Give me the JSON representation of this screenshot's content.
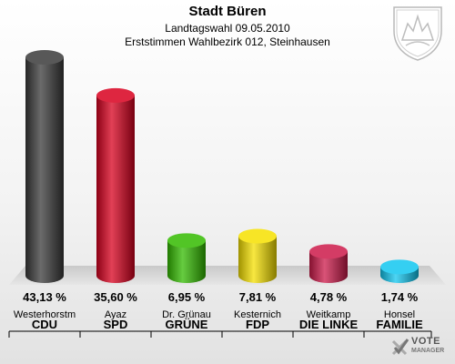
{
  "header": {
    "title": "Stadt Büren",
    "subtitle1": "Landtagswahl 09.05.2010",
    "subtitle2": "Erststimmen Wahlbezirk 012, Steinhausen"
  },
  "logo": {
    "line1": "VOTE",
    "line2": "MANAGER",
    "icon": "checkmark-cross-icon"
  },
  "crest": {
    "icon": "coat-of-arms-icon"
  },
  "colors": {
    "CDU": "#3a3a3a",
    "SPD": "#d8001e",
    "GRÜNE": "#33bb00",
    "FDP": "#f5e000",
    "DIE LINKE": "#cc1a4a",
    "FAMILIE": "#11c7f0"
  },
  "chart_data": {
    "type": "bar",
    "unit": "%",
    "categories": [
      "CDU",
      "SPD",
      "GRÜNE",
      "FDP",
      "DIE LINKE",
      "FAMILIE"
    ],
    "candidates": [
      "Westerhorstm",
      "Ayaz",
      "Dr. Grünau",
      "Kesternich",
      "Weitkamp",
      "Honsel"
    ],
    "values": [
      43.13,
      35.6,
      6.95,
      7.81,
      4.78,
      1.74
    ],
    "value_labels": [
      "43,13 %",
      "35,60 %",
      "6,95 %",
      "7,81 %",
      "4,78 %",
      "1,74 %"
    ],
    "colors": [
      "#3a3a3a",
      "#d8001e",
      "#33bb00",
      "#f5e000",
      "#cc1a4a",
      "#11c7f0"
    ],
    "title": "Stadt Büren",
    "xlabel": "",
    "ylabel": ""
  }
}
